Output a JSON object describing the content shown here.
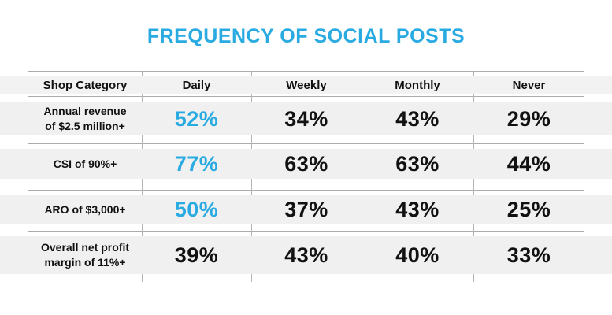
{
  "title": "FREQUENCY OF SOCIAL POSTS",
  "colors": {
    "accent_blue": "#29ABE2",
    "text_black": "#111111",
    "row_band_gray": "#F0F0F0",
    "divider_gray": "#B3B5B8",
    "background": "#FFFFFF"
  },
  "table": {
    "headers": [
      "Shop Category",
      "Daily",
      "Weekly",
      "Monthly",
      "Never"
    ],
    "rows": [
      {
        "category": "Annual revenue\nof $2.5 million+",
        "daily": "52%",
        "weekly": "34%",
        "monthly": "43%",
        "never": "29%"
      },
      {
        "category": "CSI of 90%+",
        "daily": "77%",
        "weekly": "63%",
        "monthly": "63%",
        "never": "44%"
      },
      {
        "category": "ARO of $3,000+",
        "daily": "50%",
        "weekly": "37%",
        "monthly": "43%",
        "never": "25%"
      },
      {
        "category": "Overall net profit\nmargin of 11%+",
        "daily": "39%",
        "weekly": "43%",
        "monthly": "40%",
        "never": "33%"
      }
    ]
  },
  "chart_data": {
    "type": "table",
    "title": "FREQUENCY OF SOCIAL POSTS",
    "columns": [
      "Shop Category",
      "Daily",
      "Weekly",
      "Monthly",
      "Never"
    ],
    "rows": [
      {
        "shop_category": "Annual revenue of $2.5 million+",
        "daily_pct": 52,
        "weekly_pct": 34,
        "monthly_pct": 43,
        "never_pct": 29
      },
      {
        "shop_category": "CSI of 90%+",
        "daily_pct": 77,
        "weekly_pct": 63,
        "monthly_pct": 63,
        "never_pct": 44
      },
      {
        "shop_category": "ARO of $3,000+",
        "daily_pct": 50,
        "weekly_pct": 37,
        "monthly_pct": 43,
        "never_pct": 25
      },
      {
        "shop_category": "Overall net profit margin of 11%+",
        "daily_pct": 39,
        "weekly_pct": 43,
        "monthly_pct": 40,
        "never_pct": 33
      }
    ],
    "notes": "Daily-column values for the first three rows are rendered in accent blue; all other values are black. Units are percentages."
  }
}
